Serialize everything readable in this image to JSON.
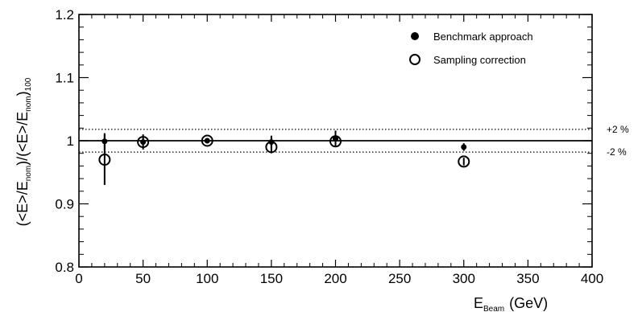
{
  "chart_data": {
    "type": "scatter",
    "title": "",
    "xlabel": {
      "main": "E",
      "sub": "Beam",
      "unit": "(GeV)"
    },
    "ylabel": {
      "part1": "(<E>/E",
      "sub1": "nom",
      "part2": ")/(<E>/E",
      "sub2": "nom",
      "part3": ")",
      "sub3": "100"
    },
    "xlim": [
      0,
      400
    ],
    "ylim": [
      0.8,
      1.2
    ],
    "x_ticks": [
      0,
      50,
      100,
      150,
      200,
      250,
      300,
      350,
      400
    ],
    "y_ticks": [
      {
        "value": 0.8,
        "label": "0.8"
      },
      {
        "value": 0.9,
        "label": "0.9"
      },
      {
        "value": 1.0,
        "label": "1"
      },
      {
        "value": 1.1,
        "label": "1.1"
      },
      {
        "value": 1.2,
        "label": "1.2"
      }
    ],
    "grid": false,
    "legend_position": "top-right",
    "reference_lines": [
      {
        "y": 1.0,
        "style": "solid"
      },
      {
        "y": 1.018,
        "style": "dotted",
        "label": "+2 %"
      },
      {
        "y": 0.982,
        "style": "dotted",
        "label": "-2 %"
      }
    ],
    "series": [
      {
        "name": "Benchmark approach",
        "marker": "filled-circle",
        "x": [
          20,
          50,
          100,
          150,
          200,
          300
        ],
        "y": [
          0.999,
          0.998,
          1.0,
          0.998,
          1.003,
          0.99
        ],
        "yerr": [
          0.013,
          0.006,
          0.003,
          0.01,
          0.013,
          0.006
        ]
      },
      {
        "name": "Sampling correction",
        "marker": "open-circle",
        "x": [
          20,
          50,
          100,
          150,
          200,
          300
        ],
        "y": [
          0.97,
          0.998,
          1.0,
          0.99,
          0.999,
          0.967
        ],
        "yerr": [
          0.04,
          0.012,
          0.004,
          0.01,
          0.008,
          0.006
        ]
      }
    ]
  },
  "colors": {
    "ink": "#000000",
    "background": "#ffffff"
  }
}
